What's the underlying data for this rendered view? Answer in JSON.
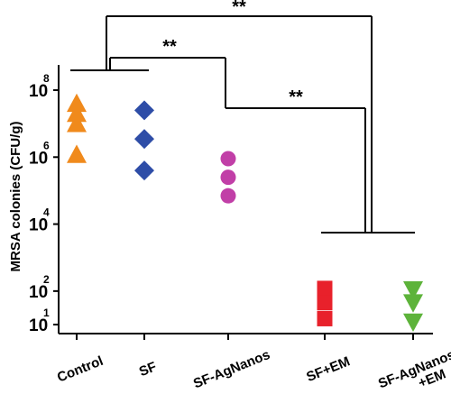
{
  "chart_data": {
    "type": "scatter",
    "ylabel": "MRSA colonies (CFU/g)",
    "y_scale": "log",
    "ylim": [
      10,
      100000000
    ],
    "y_ticks": [
      {
        "value": 10,
        "base": "10",
        "exp": "1"
      },
      {
        "value": 100,
        "base": "10",
        "exp": "2"
      },
      {
        "value": 10000,
        "base": "10",
        "exp": "4"
      },
      {
        "value": 1000000,
        "base": "10",
        "exp": "6"
      },
      {
        "value": 100000000,
        "base": "10",
        "exp": "8"
      }
    ],
    "categories": [
      "Control",
      "SF",
      "SF-AgNanos",
      "SF+EM",
      "SF-AgNanos +EM"
    ],
    "series": [
      {
        "category": "Control",
        "marker": "triangle-up",
        "color": "#F08A1C",
        "values": [
          40000000,
          20000000,
          10000000,
          1200000
        ]
      },
      {
        "category": "SF",
        "marker": "diamond",
        "color": "#2E4DA7",
        "values": [
          25000000,
          3500000,
          400000
        ]
      },
      {
        "category": "SF-AgNanos",
        "marker": "circle",
        "color": "#C13FA7",
        "values": [
          900000,
          250000,
          70000
        ]
      },
      {
        "category": "SF+EM",
        "marker": "square",
        "color": "#E8212B",
        "values": [
          120,
          45,
          15
        ]
      },
      {
        "category": "SF-AgNanos +EM",
        "marker": "triangle-down",
        "color": "#5DB33A",
        "values": [
          110,
          45,
          12
        ]
      }
    ],
    "annotations": [
      {
        "text": "**",
        "from": "Control",
        "to": "SF-AgNanos +EM"
      },
      {
        "text": "**",
        "from": "Control",
        "to": "SF-AgNanos"
      },
      {
        "text": "**",
        "from": "SF-AgNanos",
        "to": "SF+EM"
      }
    ],
    "grid": false,
    "legend": "none"
  }
}
